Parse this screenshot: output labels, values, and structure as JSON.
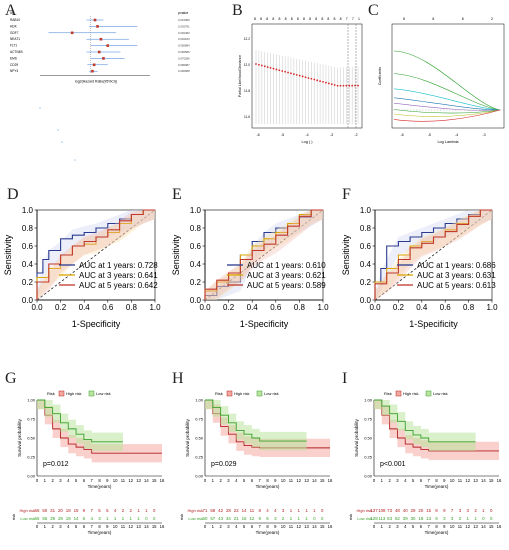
{
  "panels": {
    "A": "A",
    "B": "B",
    "C": "C",
    "D": "D",
    "E": "E",
    "F": "F",
    "G": "G",
    "H": "H",
    "I": "I"
  },
  "forest": {
    "genes": [
      "RAB10",
      "HDK",
      "GDF7",
      "NEAT1",
      "FLT1",
      "ACTN4B",
      "EMS",
      "CD29",
      "NPY4"
    ],
    "log2hr": [
      0.05,
      0.08,
      -0.22,
      0.12,
      0.2,
      0.1,
      0.15,
      0.04,
      0.02
    ],
    "lower": [
      -0.05,
      -0.02,
      -0.5,
      -0.05,
      0.0,
      -0.05,
      0.0,
      -0.04,
      -0.02
    ],
    "upper": [
      0.15,
      0.55,
      0.3,
      0.45,
      0.55,
      0.35,
      0.4,
      0.2,
      0.08
    ],
    "xlabel": "log2(Hazard Ratio(95%CI))",
    "head_gene": "id",
    "head_p": "pvalue"
  },
  "lasso_cv": {
    "xlabel": "Log (  )",
    "ylabel": "Partial Likelihood Deviance",
    "top_counts": [
      "8",
      "8",
      "8",
      "8",
      "8",
      "8",
      "8",
      "8",
      "8",
      "8",
      "8",
      "8",
      "8",
      "8",
      "8",
      "7",
      "7",
      "1"
    ],
    "xticks": [
      "-6",
      "-5",
      "-4",
      "-3",
      "-2"
    ],
    "yticks": [
      "11.6",
      "11.8",
      "12.0",
      "12.2"
    ]
  },
  "lasso_path": {
    "xlabel": "Log Lambda",
    "ylabel": "Coefficients",
    "top_counts": [
      "8",
      "8",
      "8",
      "2"
    ],
    "xticks": [
      "-6",
      "-5",
      "-4",
      "-3"
    ]
  },
  "roc": [
    {
      "letter": "D",
      "xlabel": "1-Specificity",
      "ylabel": "Sensitivity",
      "legend": [
        "AUC at 1 years: 0.728",
        "AUC at 3 years: 0.641",
        "AUC at 5 years: 0.642"
      ],
      "xticks": [
        "0.0",
        "0.2",
        "0.4",
        "0.6",
        "0.8",
        "1.0"
      ],
      "yticks": [
        "0.0",
        "0.2",
        "0.4",
        "0.6",
        "0.8",
        "1.0"
      ]
    },
    {
      "letter": "E",
      "xlabel": "1-Specificity",
      "ylabel": "Sensitivity",
      "legend": [
        "AUC at 1 years: 0.610",
        "AUC at 3 years: 0.621",
        "AUC at 5 years: 0.589"
      ],
      "xticks": [
        "0.0",
        "0.2",
        "0.4",
        "0.6",
        "0.8",
        "1.0"
      ],
      "yticks": [
        "0.0",
        "0.2",
        "0.4",
        "0.6",
        "0.8",
        "1.0"
      ]
    },
    {
      "letter": "F",
      "xlabel": "1-Specificity",
      "ylabel": "Sensitivity",
      "legend": [
        "AUC at 1 years: 0.686",
        "AUC at 3 years: 0.631",
        "AUC at 5 years: 0.613"
      ],
      "xticks": [
        "0.0",
        "0.2",
        "0.4",
        "0.6",
        "0.8",
        "1.0"
      ],
      "yticks": [
        "0.0",
        "0.2",
        "0.4",
        "0.6",
        "0.8",
        "1.0"
      ]
    }
  ],
  "km": [
    {
      "letter": "G",
      "pvalue": "p=0.012",
      "legend_title": "Risk",
      "legend": [
        "High risk",
        "Low risk"
      ],
      "ylabel": "Survival probability",
      "xlabel": "Time(years)",
      "risk_label": "risk",
      "table_high": [
        "66",
        "50",
        "31",
        "20",
        "18",
        "15",
        "9",
        "7",
        "5",
        "5",
        "4",
        "2",
        "2",
        "1",
        "1",
        "0"
      ],
      "table_low": [
        "66",
        "56",
        "39",
        "28",
        "18",
        "14",
        "6",
        "4",
        "3",
        "1",
        "1",
        "1",
        "1",
        "1",
        "0",
        "0"
      ]
    },
    {
      "letter": "H",
      "pvalue": "p=0.029",
      "legend_title": "Risk",
      "legend": [
        "High risk",
        "Low risk"
      ],
      "ylabel": "Survival probability",
      "xlabel": "Time(years)",
      "risk_label": "risk",
      "table_high": [
        "71",
        "58",
        "42",
        "28",
        "22",
        "14",
        "11",
        "8",
        "4",
        "4",
        "3",
        "1",
        "1",
        "1",
        "1",
        "0"
      ],
      "table_low": [
        "60",
        "57",
        "43",
        "34",
        "21",
        "16",
        "12",
        "9",
        "6",
        "3",
        "2",
        "1",
        "1",
        "1",
        "0",
        "0"
      ]
    },
    {
      "letter": "I",
      "pvalue": "p<0.001",
      "legend_title": "Risk",
      "legend": [
        "High risk",
        "Low risk"
      ],
      "ylabel": "Survival probability",
      "xlabel": "Time(years)",
      "risk_label": "risk",
      "table_high": [
        "137",
        "108",
        "73",
        "48",
        "40",
        "29",
        "20",
        "15",
        "9",
        "9",
        "7",
        "3",
        "3",
        "2",
        "1",
        "0"
      ],
      "table_low": [
        "128",
        "113",
        "83",
        "62",
        "39",
        "30",
        "18",
        "13",
        "9",
        "3",
        "3",
        "2",
        "1",
        "1",
        "0",
        "0"
      ]
    }
  ],
  "km_xticks": [
    "0",
    "1",
    "2",
    "3",
    "4",
    "5",
    "6",
    "7",
    "8",
    "9",
    "10",
    "11",
    "12",
    "13",
    "14",
    "15",
    "16"
  ],
  "km_yticks": [
    "0.00",
    "0.25",
    "0.50",
    "0.75",
    "1.00"
  ],
  "chart_data": [
    {
      "type": "line",
      "panel": "D",
      "series": [
        {
          "name": "AUC at 1 years: 0.728",
          "x": [
            0,
            0.05,
            0.1,
            0.2,
            0.3,
            0.4,
            0.5,
            0.6,
            0.7,
            0.8,
            0.9,
            1
          ],
          "y": [
            0,
            0.3,
            0.45,
            0.55,
            0.68,
            0.72,
            0.75,
            0.8,
            0.85,
            0.9,
            0.95,
            1
          ]
        },
        {
          "name": "AUC at 3 years: 0.641",
          "x": [
            0,
            0.1,
            0.2,
            0.3,
            0.4,
            0.5,
            0.6,
            0.7,
            0.8,
            0.9,
            1
          ],
          "y": [
            0,
            0.25,
            0.35,
            0.5,
            0.6,
            0.62,
            0.7,
            0.75,
            0.85,
            0.95,
            1
          ]
        },
        {
          "name": "AUC at 5 years: 0.642",
          "x": [
            0,
            0.1,
            0.2,
            0.3,
            0.4,
            0.5,
            0.6,
            0.7,
            0.8,
            0.9,
            1
          ],
          "y": [
            0,
            0.2,
            0.4,
            0.5,
            0.6,
            0.65,
            0.7,
            0.78,
            0.88,
            0.95,
            1
          ]
        }
      ]
    },
    {
      "type": "line",
      "panel": "E",
      "series": [
        {
          "name": "AUC at 1 years: 0.610",
          "x": [
            0,
            0.1,
            0.2,
            0.3,
            0.4,
            0.5,
            0.6,
            0.7,
            0.8,
            0.9,
            1
          ],
          "y": [
            0,
            0.05,
            0.15,
            0.2,
            0.5,
            0.65,
            0.75,
            0.8,
            0.85,
            0.92,
            1
          ]
        },
        {
          "name": "AUC at 3 years: 0.621",
          "x": [
            0,
            0.1,
            0.2,
            0.3,
            0.4,
            0.5,
            0.6,
            0.7,
            0.8,
            0.9,
            1
          ],
          "y": [
            0,
            0.1,
            0.2,
            0.3,
            0.5,
            0.6,
            0.68,
            0.75,
            0.85,
            0.95,
            1
          ]
        },
        {
          "name": "AUC at 5 years: 0.589",
          "x": [
            0,
            0.1,
            0.2,
            0.3,
            0.4,
            0.5,
            0.6,
            0.7,
            0.8,
            0.9,
            1
          ],
          "y": [
            0,
            0.12,
            0.22,
            0.3,
            0.45,
            0.55,
            0.62,
            0.72,
            0.82,
            0.93,
            1
          ]
        }
      ]
    },
    {
      "type": "line",
      "panel": "F",
      "series": [
        {
          "name": "AUC at 1 years: 0.686",
          "x": [
            0,
            0.05,
            0.1,
            0.2,
            0.3,
            0.4,
            0.5,
            0.6,
            0.7,
            0.8,
            0.9,
            1
          ],
          "y": [
            0,
            0.2,
            0.35,
            0.6,
            0.65,
            0.7,
            0.75,
            0.8,
            0.85,
            0.9,
            0.95,
            1
          ]
        },
        {
          "name": "AUC at 3 years: 0.631",
          "x": [
            0,
            0.1,
            0.2,
            0.3,
            0.4,
            0.5,
            0.6,
            0.7,
            0.8,
            0.9,
            1
          ],
          "y": [
            0,
            0.2,
            0.35,
            0.5,
            0.6,
            0.65,
            0.7,
            0.78,
            0.85,
            0.93,
            1
          ]
        },
        {
          "name": "AUC at 5 years: 0.613",
          "x": [
            0,
            0.1,
            0.2,
            0.3,
            0.4,
            0.5,
            0.6,
            0.7,
            0.8,
            0.9,
            1
          ],
          "y": [
            0,
            0.18,
            0.3,
            0.45,
            0.58,
            0.63,
            0.7,
            0.76,
            0.84,
            0.93,
            1
          ]
        }
      ]
    },
    {
      "type": "line",
      "panel": "G",
      "series": [
        {
          "name": "High risk",
          "x": [
            0,
            1,
            2,
            3,
            4,
            5,
            6,
            7,
            8,
            16
          ],
          "y": [
            1,
            0.8,
            0.62,
            0.5,
            0.42,
            0.38,
            0.35,
            0.3,
            0.3,
            0.3
          ]
        },
        {
          "name": "Low risk",
          "x": [
            0,
            1,
            2,
            3,
            4,
            5,
            6,
            7,
            8,
            11
          ],
          "y": [
            1,
            0.9,
            0.82,
            0.7,
            0.62,
            0.55,
            0.48,
            0.45,
            0.45,
            0.45
          ]
        }
      ]
    },
    {
      "type": "line",
      "panel": "H",
      "series": [
        {
          "name": "High risk",
          "x": [
            0,
            1,
            2,
            3,
            4,
            5,
            6,
            7,
            8,
            16
          ],
          "y": [
            1,
            0.82,
            0.65,
            0.55,
            0.45,
            0.4,
            0.38,
            0.37,
            0.37,
            0.37
          ]
        },
        {
          "name": "Low risk",
          "x": [
            0,
            1,
            2,
            3,
            4,
            5,
            6,
            7,
            8,
            13
          ],
          "y": [
            1,
            0.9,
            0.8,
            0.7,
            0.6,
            0.55,
            0.5,
            0.46,
            0.46,
            0.46
          ]
        }
      ]
    },
    {
      "type": "line",
      "panel": "I",
      "series": [
        {
          "name": "High risk",
          "x": [
            0,
            1,
            2,
            3,
            4,
            5,
            6,
            7,
            8,
            16
          ],
          "y": [
            1,
            0.8,
            0.62,
            0.5,
            0.42,
            0.38,
            0.35,
            0.33,
            0.33,
            0.33
          ]
        },
        {
          "name": "Low risk",
          "x": [
            0,
            1,
            2,
            3,
            4,
            5,
            6,
            7,
            8,
            13
          ],
          "y": [
            1,
            0.92,
            0.82,
            0.72,
            0.6,
            0.54,
            0.5,
            0.45,
            0.45,
            0.45
          ]
        }
      ]
    }
  ],
  "colors": {
    "roc1": "#2b3a8f",
    "roc3": "#d9a400",
    "roc5": "#c0392b",
    "high": "#b22222",
    "low": "#3aa02a",
    "high_band": "#f4a9a0",
    "low_band": "#b9e39e"
  }
}
